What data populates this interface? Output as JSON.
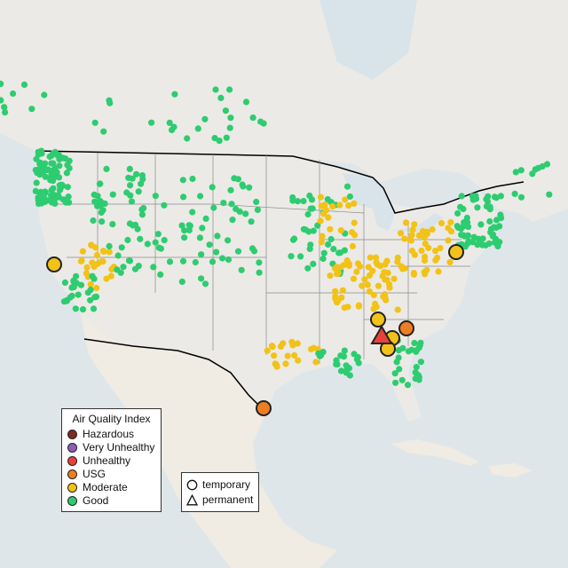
{
  "map": {
    "land_color": "#eceae6",
    "water_color": "#d9e3ea",
    "mexico_color": "#f0ebe3",
    "border_color": "#000000",
    "state_line_color": "#8a8a8a"
  },
  "legend": {
    "title": "Air Quality Index",
    "items": [
      {
        "label": "Hazardous",
        "color": "#7e2a24"
      },
      {
        "label": "Very Unhealthy",
        "color": "#8f5db8"
      },
      {
        "label": "Unhealthy",
        "color": "#e8413c"
      },
      {
        "label": "USG",
        "color": "#ef7d22"
      },
      {
        "label": "Moderate",
        "color": "#f2c218"
      },
      {
        "label": "Good",
        "color": "#2ecc71"
      }
    ]
  },
  "marker_types": {
    "items": [
      {
        "label": "temporary",
        "shape": "circle"
      },
      {
        "label": "permanent",
        "shape": "triangle"
      }
    ]
  },
  "highlighted_monitors": [
    {
      "category": "Moderate",
      "type": "temporary",
      "region": "Northern California"
    },
    {
      "category": "Moderate",
      "type": "temporary",
      "region": "Mid-Atlantic"
    },
    {
      "category": "Moderate",
      "type": "temporary",
      "region": "Northern Georgia"
    },
    {
      "category": "Moderate",
      "type": "temporary",
      "region": "Georgia"
    },
    {
      "category": "Moderate",
      "type": "temporary",
      "region": "Southern Georgia"
    },
    {
      "category": "Unhealthy",
      "type": "permanent",
      "region": "Georgia"
    },
    {
      "category": "USG",
      "type": "temporary",
      "region": "South Carolina"
    },
    {
      "category": "USG",
      "type": "temporary",
      "region": "South Texas"
    }
  ]
}
